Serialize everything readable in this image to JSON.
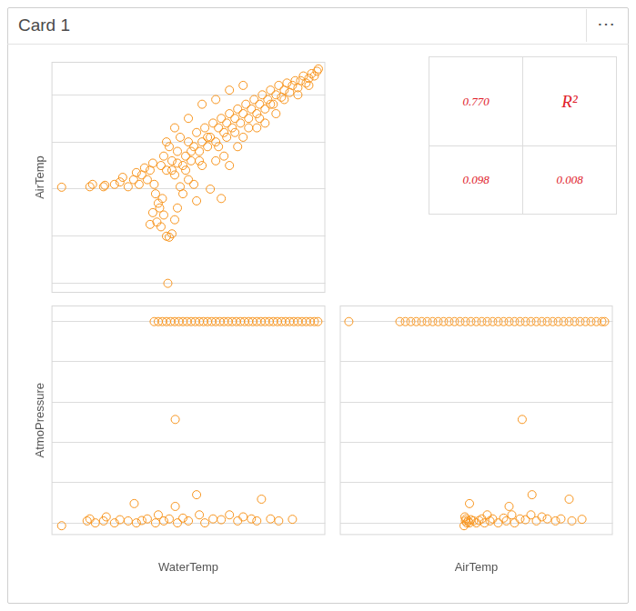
{
  "card": {
    "title": "Card 1",
    "menu": "⋯"
  },
  "table": {
    "rows": [
      [
        "0.770",
        "R²"
      ],
      [
        "0.098",
        "0.008"
      ]
    ]
  },
  "chart_data": [
    {
      "type": "scatter",
      "y_label": "AirTemp",
      "color": "#f7941d",
      "marker": "circle",
      "grid": true,
      "tick_labels": false,
      "xlim": [
        0,
        10
      ],
      "ylim": [
        -0.2,
        4.7
      ],
      "yticks": [
        0,
        1,
        2,
        3,
        4
      ],
      "x": [
        0.37,
        1.4,
        1.5,
        1.9,
        1.95,
        2.3,
        2.5,
        2.6,
        2.8,
        3.0,
        3.1,
        3.2,
        3.3,
        3.4,
        3.5,
        3.6,
        3.7,
        3.75,
        3.8,
        3.9,
        3.7,
        3.85,
        4.0,
        4.2,
        4.3,
        4.4,
        3.95,
        4.1,
        4.05,
        3.6,
        4.5,
        4.6,
        4.8,
        4.25,
        4.0,
        4.1,
        4.2,
        4.3,
        4.4,
        4.5,
        4.6,
        4.7,
        4.8,
        4.9,
        5.0,
        5.1,
        5.2,
        5.3,
        5.4,
        5.5,
        5.6,
        5.7,
        5.8,
        5.9,
        6.0,
        6.1,
        6.2,
        6.3,
        6.4,
        6.5,
        6.6,
        6.7,
        6.8,
        6.9,
        7.0,
        7.1,
        7.2,
        7.3,
        7.4,
        7.5,
        7.6,
        7.7,
        7.8,
        7.9,
        8.0,
        8.1,
        8.2,
        8.3,
        8.4,
        8.5,
        8.6,
        8.7,
        8.8,
        8.9,
        9.0,
        9.1,
        9.2,
        9.3,
        9.4,
        9.5,
        9.6,
        9.7,
        9.75,
        5.0,
        5.5,
        6.0,
        5.2,
        6.3,
        6.8,
        7.0,
        6.5,
        5.8,
        7.5,
        4.7,
        5.3,
        6.2,
        4.5,
        5.0,
        5.5,
        6.0,
        6.5,
        4.2,
        7.0,
        4.4,
        4.6,
        4.9,
        5.1,
        5.4,
        5.7,
        6.1,
        6.4,
        6.7,
        7.2,
        7.6,
        8.0,
        8.5,
        9.0,
        9.4,
        8.2,
        7.8
      ],
      "values": [
        2.04,
        2.05,
        2.1,
        2.05,
        2.08,
        2.1,
        2.15,
        2.25,
        2.05,
        2.2,
        2.35,
        2.1,
        2.3,
        2.45,
        2.2,
        2.4,
        2.55,
        2.1,
        1.9,
        1.7,
        1.5,
        1.3,
        1.2,
        1.0,
        0.98,
        1.05,
        1.6,
        1.45,
        1.8,
        1.25,
        1.35,
        1.6,
        1.9,
        0.0,
        2.5,
        2.7,
        2.4,
        2.9,
        2.6,
        2.3,
        2.8,
        3.1,
        2.5,
        2.7,
        3.0,
        2.6,
        2.9,
        3.2,
        2.8,
        3.0,
        3.3,
        2.9,
        3.1,
        3.4,
        3.0,
        3.3,
        3.5,
        3.2,
        3.4,
        3.6,
        3.3,
        3.5,
        3.7,
        3.4,
        3.6,
        3.8,
        3.5,
        3.7,
        3.9,
        3.6,
        3.8,
        4.0,
        3.7,
        3.9,
        4.1,
        3.8,
        4.0,
        4.2,
        3.95,
        4.1,
        4.25,
        4.05,
        4.2,
        4.3,
        4.15,
        4.3,
        4.4,
        4.25,
        4.35,
        4.45,
        4.4,
        4.5,
        4.55,
        2.2,
        2.5,
        2.6,
        2.1,
        2.7,
        2.9,
        3.1,
        2.5,
        2.0,
        3.3,
        2.05,
        1.75,
        1.8,
        3.3,
        3.5,
        3.8,
        3.9,
        4.1,
        3.0,
        4.2,
        2.4,
        2.55,
        2.4,
        2.8,
        2.6,
        3.1,
        2.9,
        3.1,
        3.2,
        3.3,
        3.5,
        3.8,
        3.9,
        4.0,
        4.2,
        3.6,
        3.4
      ]
    },
    {
      "type": "scatter",
      "x_label": "WaterTemp",
      "y_label": "AtmoPressure",
      "color": "#f7941d",
      "marker": "circle",
      "grid": true,
      "tick_labels": false,
      "xlim": [
        0,
        10
      ],
      "ylim": [
        -0.3,
        5.4
      ],
      "yticks": [
        0,
        1,
        2,
        3,
        4,
        5
      ],
      "x": [
        3.75,
        3.9,
        4.05,
        4.2,
        4.35,
        4.5,
        4.65,
        4.8,
        4.95,
        5.1,
        5.25,
        5.4,
        5.55,
        5.7,
        5.85,
        6.0,
        6.15,
        6.3,
        6.45,
        6.6,
        6.75,
        6.9,
        7.05,
        7.2,
        7.35,
        7.5,
        7.65,
        7.8,
        7.95,
        8.1,
        8.25,
        8.4,
        8.55,
        8.7,
        8.85,
        9.0,
        9.15,
        9.3,
        9.45,
        9.6,
        9.73,
        4.52,
        0.37,
        1.3,
        1.4,
        1.6,
        1.9,
        2.0,
        2.3,
        2.5,
        2.8,
        3.02,
        3.1,
        3.3,
        3.5,
        3.8,
        3.9,
        4.1,
        4.3,
        4.52,
        4.6,
        4.8,
        5.0,
        5.3,
        5.4,
        5.6,
        5.9,
        6.2,
        6.5,
        6.8,
        7.0,
        7.3,
        7.67,
        7.5,
        8.0,
        8.3,
        8.8
      ],
      "values": [
        5,
        5,
        5,
        5,
        5,
        5,
        5,
        5,
        5,
        5,
        5,
        5,
        5,
        5,
        5,
        5,
        5,
        5,
        5,
        5,
        5,
        5,
        5,
        5,
        5,
        5,
        5,
        5,
        5,
        5,
        5,
        5,
        5,
        5,
        5,
        5,
        5,
        5,
        5,
        5,
        5,
        2.57,
        -0.07,
        0.05,
        0.1,
        0.0,
        0.05,
        0.15,
        0.0,
        0.08,
        0.05,
        0.48,
        0.0,
        0.06,
        0.1,
        0.0,
        0.2,
        0.05,
        0.1,
        0.41,
        0.0,
        0.12,
        0.05,
        0.7,
        0.2,
        0.0,
        0.1,
        0.08,
        0.2,
        0.05,
        0.15,
        0.1,
        0.59,
        0.05,
        0.1,
        0.05,
        0.09
      ]
    },
    {
      "type": "scatter",
      "x_label": "AirTemp",
      "color": "#f7941d",
      "marker": "circle",
      "grid": true,
      "tick_labels": false,
      "xlim": [
        0,
        10
      ],
      "ylim": [
        -0.3,
        5.4
      ],
      "yticks": [
        0,
        1,
        2,
        3,
        4,
        5
      ],
      "x": [
        0.33,
        2.2,
        2.4,
        2.6,
        2.8,
        3.0,
        3.2,
        3.4,
        3.6,
        3.8,
        4.0,
        4.2,
        4.4,
        4.6,
        4.8,
        5.0,
        5.2,
        5.4,
        5.6,
        5.8,
        6.0,
        6.2,
        6.4,
        6.6,
        6.8,
        7.0,
        7.2,
        7.4,
        7.6,
        7.8,
        8.0,
        8.2,
        8.4,
        8.6,
        8.8,
        9.0,
        9.2,
        9.4,
        9.6,
        9.7,
        6.68,
        4.55,
        4.6,
        4.62,
        4.65,
        4.7,
        4.58,
        4.75,
        4.8,
        4.9,
        4.75,
        5.0,
        5.1,
        5.2,
        5.3,
        5.4,
        5.5,
        5.6,
        6.2,
        5.8,
        6.0,
        6.1,
        7.04,
        6.3,
        6.4,
        6.6,
        6.8,
        7.0,
        7.2,
        7.4,
        7.6,
        8.4,
        7.9,
        8.1,
        8.5,
        8.87
      ],
      "values": [
        5,
        5,
        5,
        5,
        5,
        5,
        5,
        5,
        5,
        5,
        5,
        5,
        5,
        5,
        5,
        5,
        5,
        5,
        5,
        5,
        5,
        5,
        5,
        5,
        5,
        5,
        5,
        5,
        5,
        5,
        5,
        5,
        5,
        5,
        5,
        5,
        5,
        5,
        5,
        5,
        2.57,
        -0.07,
        0.05,
        0.1,
        0.0,
        0.05,
        0.15,
        0.0,
        0.08,
        0.05,
        0.48,
        0.0,
        0.06,
        0.1,
        0.0,
        0.2,
        0.05,
        0.1,
        0.41,
        0.0,
        0.12,
        0.05,
        0.7,
        0.2,
        0.0,
        0.1,
        0.08,
        0.2,
        0.05,
        0.15,
        0.1,
        0.59,
        0.05,
        0.1,
        0.05,
        0.09
      ]
    }
  ]
}
